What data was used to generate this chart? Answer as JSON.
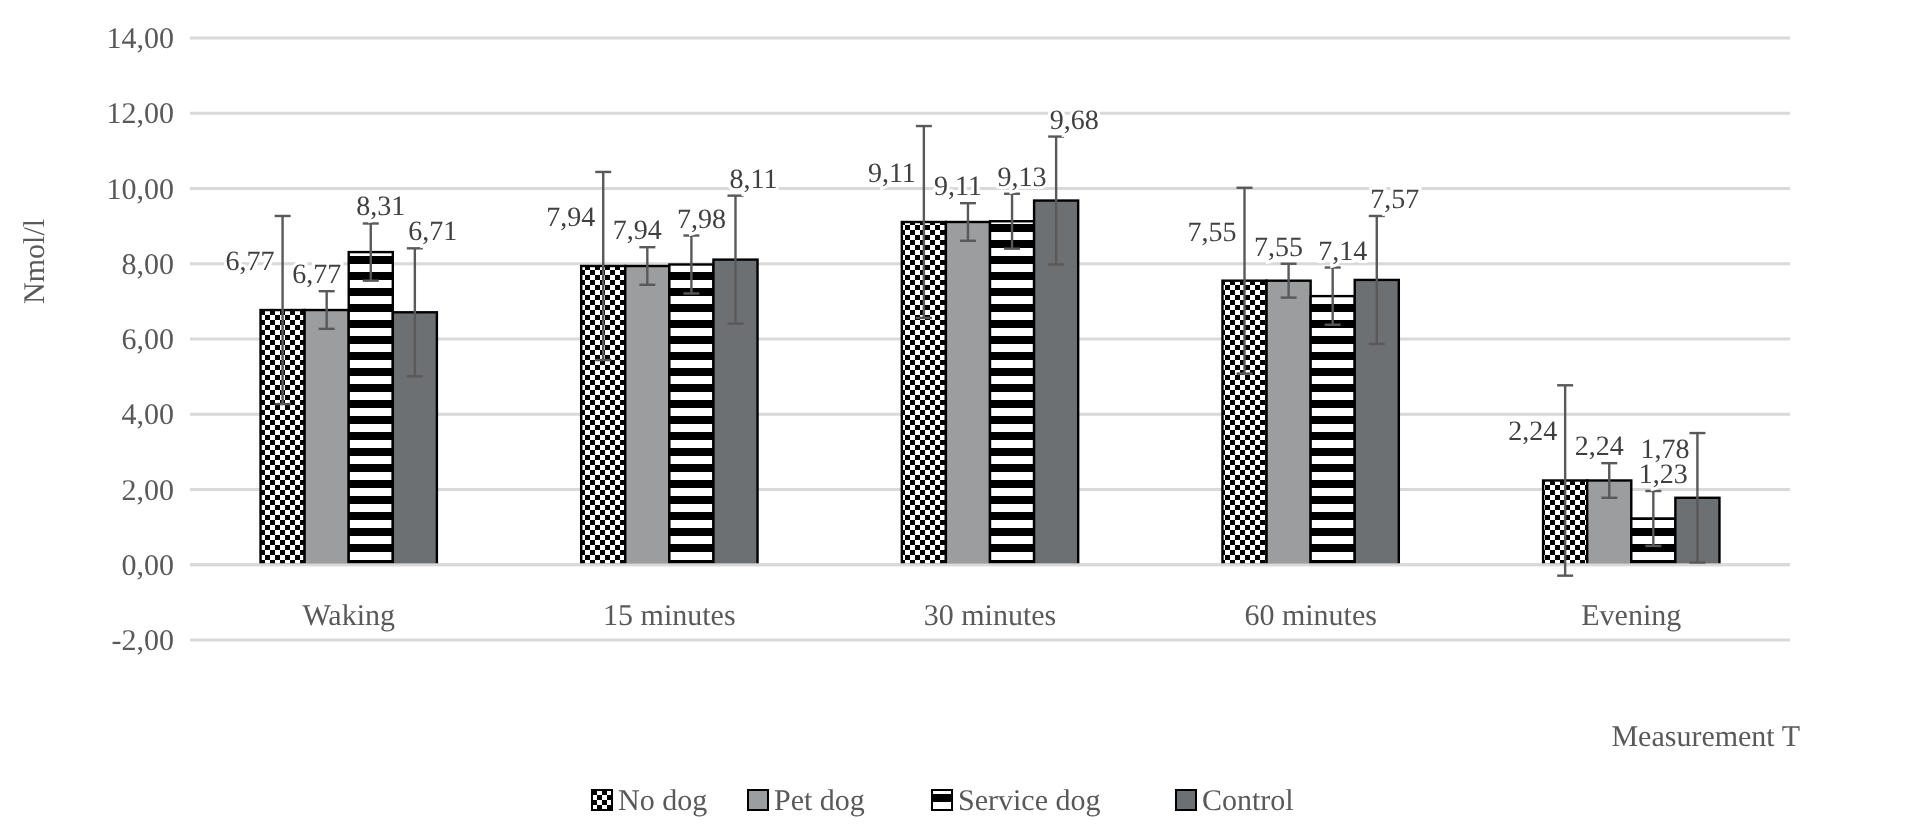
{
  "chart_data": {
    "type": "bar",
    "xlabel": "Measurement T",
    "ylabel": "Nmol/l",
    "categories": [
      "Waking",
      "15 minutes",
      "30 minutes",
      "60 minutes",
      "Evening"
    ],
    "series": [
      {
        "name": "No dog",
        "color": "#000000",
        "values": [
          6.77,
          7.94,
          9.11,
          7.55,
          2.24
        ],
        "value_labels": [
          "6,77",
          "7,94",
          "9,11",
          "7,55",
          "2,24"
        ],
        "errors": [
          2.5,
          2.5,
          2.55,
          2.47,
          2.53
        ]
      },
      {
        "name": "Pet dog",
        "color": "#9b9d9e",
        "values": [
          6.77,
          7.94,
          9.11,
          7.55,
          2.24
        ],
        "value_labels": [
          "6,77",
          "7,94",
          "9,11",
          "7,55",
          "2,24"
        ],
        "errors": [
          0.5,
          0.5,
          0.5,
          0.45,
          0.46
        ]
      },
      {
        "name": "Service dog",
        "color": "#000000",
        "values": [
          8.31,
          7.98,
          9.13,
          7.14,
          1.23
        ],
        "value_labels": [
          "8,31",
          "7,98",
          "9,13",
          "7,14",
          "1,23"
        ],
        "errors": [
          0.76,
          0.77,
          0.73,
          0.76,
          0.73
        ]
      },
      {
        "name": "Control",
        "color": "#6d7073",
        "values": [
          6.71,
          8.11,
          9.68,
          7.57,
          1.78
        ],
        "value_labels": [
          "6,71",
          "8,11",
          "9,68",
          "7,57",
          "1,78"
        ],
        "errors": [
          1.7,
          1.7,
          1.7,
          1.7,
          1.72
        ]
      }
    ],
    "ylim": [
      -2,
      14
    ],
    "yticks": [
      {
        "value": -2,
        "label": "-2,00"
      },
      {
        "value": 0,
        "label": "0,00"
      },
      {
        "value": 2,
        "label": "2,00"
      },
      {
        "value": 4,
        "label": "4,00"
      },
      {
        "value": 6,
        "label": "6,00"
      },
      {
        "value": 8,
        "label": "8,00"
      },
      {
        "value": 10,
        "label": "10,00"
      },
      {
        "value": 12,
        "label": "12,00"
      },
      {
        "value": 14,
        "label": "14,00"
      }
    ],
    "grid": "y",
    "legend": "bottom"
  }
}
